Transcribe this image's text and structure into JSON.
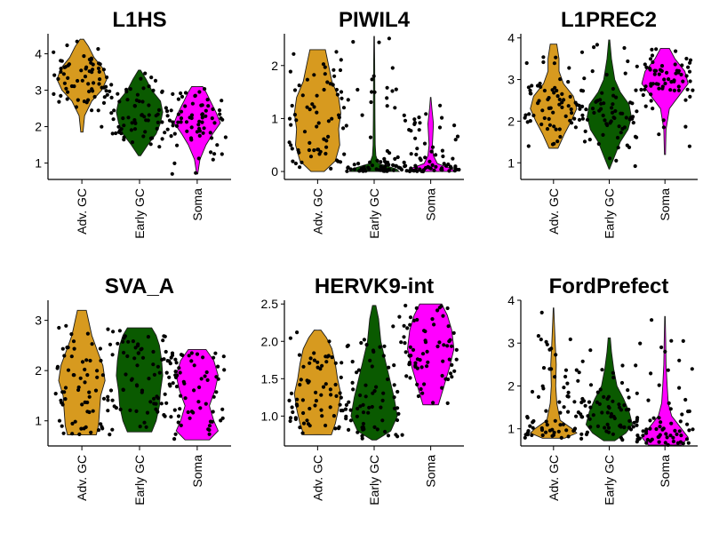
{
  "figure": {
    "groups": [
      "Adv. GC",
      "Early GC",
      "Soma"
    ],
    "group_colors": [
      "#d79a1f",
      "#0a5a00",
      "#ff00ff"
    ]
  },
  "chart_data": [
    {
      "type": "violin",
      "title": "L1HS",
      "categories": [
        "Adv. GC",
        "Early GC",
        "Soma"
      ],
      "ylim": [
        0.55,
        4.55
      ],
      "yticks": [
        1,
        2,
        3,
        4
      ],
      "series": [
        {
          "category": "Adv. GC",
          "min": 1.85,
          "max": 4.4,
          "density": [
            [
              1.85,
              0.02
            ],
            [
              2.3,
              0.05
            ],
            [
              2.7,
              0.18
            ],
            [
              3.0,
              0.36
            ],
            [
              3.3,
              0.45
            ],
            [
              3.6,
              0.38
            ],
            [
              3.9,
              0.22
            ],
            [
              4.2,
              0.12
            ],
            [
              4.4,
              0.03
            ]
          ]
        },
        {
          "category": "Early GC",
          "min": 1.2,
          "max": 3.55,
          "density": [
            [
              1.2,
              0.02
            ],
            [
              1.5,
              0.15
            ],
            [
              1.8,
              0.3
            ],
            [
              2.1,
              0.38
            ],
            [
              2.4,
              0.42
            ],
            [
              2.7,
              0.38
            ],
            [
              3.0,
              0.22
            ],
            [
              3.3,
              0.12
            ],
            [
              3.55,
              0.02
            ]
          ]
        },
        {
          "category": "Soma",
          "min": 0.7,
          "max": 3.1,
          "density": [
            [
              0.7,
              0.01
            ],
            [
              1.1,
              0.05
            ],
            [
              1.5,
              0.16
            ],
            [
              1.8,
              0.28
            ],
            [
              2.1,
              0.42
            ],
            [
              2.4,
              0.34
            ],
            [
              2.7,
              0.24
            ],
            [
              2.95,
              0.16
            ],
            [
              3.1,
              0.1
            ]
          ]
        }
      ]
    },
    {
      "type": "violin",
      "title": "PIWIL4",
      "categories": [
        "Adv. GC",
        "Early GC",
        "Soma"
      ],
      "ylim": [
        -0.15,
        2.6
      ],
      "yticks": [
        0,
        1,
        2
      ],
      "series": [
        {
          "category": "Adv. GC",
          "min": 0.0,
          "max": 2.3,
          "density": [
            [
              0.0,
              0.12
            ],
            [
              0.2,
              0.32
            ],
            [
              0.5,
              0.4
            ],
            [
              0.8,
              0.38
            ],
            [
              1.1,
              0.42
            ],
            [
              1.4,
              0.38
            ],
            [
              1.7,
              0.26
            ],
            [
              2.0,
              0.2
            ],
            [
              2.3,
              0.14
            ]
          ]
        },
        {
          "category": "Early GC",
          "min": 0.0,
          "max": 2.55,
          "density": [
            [
              0.0,
              0.45
            ],
            [
              0.05,
              0.4
            ],
            [
              0.15,
              0.08
            ],
            [
              0.3,
              0.03
            ],
            [
              0.5,
              0.02
            ],
            [
              1.0,
              0.015
            ],
            [
              2.0,
              0.01
            ],
            [
              2.55,
              0.005
            ]
          ]
        },
        {
          "category": "Soma",
          "min": 0.0,
          "max": 1.4,
          "density": [
            [
              0.0,
              0.45
            ],
            [
              0.05,
              0.38
            ],
            [
              0.15,
              0.12
            ],
            [
              0.3,
              0.05
            ],
            [
              0.5,
              0.03
            ],
            [
              0.9,
              0.05
            ],
            [
              1.2,
              0.02
            ],
            [
              1.4,
              0.005
            ]
          ]
        }
      ]
    },
    {
      "type": "violin",
      "title": "L1PREC2",
      "categories": [
        "Adv. GC",
        "Early GC",
        "Soma"
      ],
      "ylim": [
        0.6,
        4.1
      ],
      "yticks": [
        1,
        2,
        3,
        4
      ],
      "series": [
        {
          "category": "Adv. GC",
          "min": 1.35,
          "max": 3.85,
          "density": [
            [
              1.35,
              0.08
            ],
            [
              1.7,
              0.2
            ],
            [
              2.0,
              0.32
            ],
            [
              2.3,
              0.42
            ],
            [
              2.6,
              0.36
            ],
            [
              2.9,
              0.18
            ],
            [
              3.2,
              0.1
            ],
            [
              3.5,
              0.1
            ],
            [
              3.85,
              0.06
            ]
          ]
        },
        {
          "category": "Early GC",
          "min": 0.85,
          "max": 3.95,
          "density": [
            [
              0.85,
              0.005
            ],
            [
              1.1,
              0.08
            ],
            [
              1.5,
              0.2
            ],
            [
              1.8,
              0.34
            ],
            [
              2.1,
              0.4
            ],
            [
              2.4,
              0.36
            ],
            [
              2.7,
              0.2
            ],
            [
              3.0,
              0.1
            ],
            [
              3.5,
              0.04
            ],
            [
              3.95,
              0.01
            ]
          ]
        },
        {
          "category": "Soma",
          "min": 1.2,
          "max": 3.75,
          "density": [
            [
              1.2,
              0.01
            ],
            [
              1.8,
              0.02
            ],
            [
              2.3,
              0.08
            ],
            [
              2.6,
              0.25
            ],
            [
              2.9,
              0.42
            ],
            [
              3.2,
              0.36
            ],
            [
              3.5,
              0.18
            ],
            [
              3.75,
              0.08
            ]
          ]
        }
      ]
    },
    {
      "type": "violin",
      "title": "SVA_A",
      "categories": [
        "Adv. GC",
        "Early GC",
        "Soma"
      ],
      "ylim": [
        0.5,
        3.4
      ],
      "yticks": [
        1,
        2,
        3
      ],
      "series": [
        {
          "category": "Adv. GC",
          "min": 0.72,
          "max": 3.2,
          "density": [
            [
              0.72,
              0.26
            ],
            [
              0.9,
              0.3
            ],
            [
              1.2,
              0.32
            ],
            [
              1.5,
              0.34
            ],
            [
              1.8,
              0.42
            ],
            [
              2.1,
              0.38
            ],
            [
              2.4,
              0.28
            ],
            [
              2.7,
              0.18
            ],
            [
              3.0,
              0.12
            ],
            [
              3.2,
              0.08
            ]
          ]
        },
        {
          "category": "Early GC",
          "min": 0.78,
          "max": 2.85,
          "density": [
            [
              0.78,
              0.22
            ],
            [
              1.0,
              0.3
            ],
            [
              1.3,
              0.36
            ],
            [
              1.6,
              0.38
            ],
            [
              1.9,
              0.42
            ],
            [
              2.2,
              0.4
            ],
            [
              2.5,
              0.36
            ],
            [
              2.7,
              0.3
            ],
            [
              2.85,
              0.22
            ]
          ]
        },
        {
          "category": "Soma",
          "min": 0.62,
          "max": 2.42,
          "density": [
            [
              0.62,
              0.22
            ],
            [
              0.8,
              0.38
            ],
            [
              1.0,
              0.3
            ],
            [
              1.3,
              0.22
            ],
            [
              1.6,
              0.32
            ],
            [
              1.9,
              0.38
            ],
            [
              2.2,
              0.3
            ],
            [
              2.42,
              0.16
            ]
          ]
        }
      ]
    },
    {
      "type": "violin",
      "title": "HERVK9-int",
      "categories": [
        "Adv. GC",
        "Early GC",
        "Soma"
      ],
      "ylim": [
        0.6,
        2.55
      ],
      "yticks": [
        1.0,
        1.5,
        2.0,
        2.5
      ],
      "series": [
        {
          "category": "Adv. GC",
          "min": 0.75,
          "max": 2.15,
          "density": [
            [
              0.75,
              0.25
            ],
            [
              0.9,
              0.32
            ],
            [
              1.1,
              0.38
            ],
            [
              1.3,
              0.42
            ],
            [
              1.5,
              0.36
            ],
            [
              1.7,
              0.32
            ],
            [
              1.9,
              0.26
            ],
            [
              2.05,
              0.16
            ],
            [
              2.15,
              0.06
            ]
          ]
        },
        {
          "category": "Early GC",
          "min": 0.68,
          "max": 2.48,
          "density": [
            [
              0.68,
              0.04
            ],
            [
              0.8,
              0.3
            ],
            [
              1.0,
              0.42
            ],
            [
              1.25,
              0.36
            ],
            [
              1.5,
              0.28
            ],
            [
              1.75,
              0.2
            ],
            [
              2.0,
              0.12
            ],
            [
              2.3,
              0.08
            ],
            [
              2.48,
              0.03
            ]
          ]
        },
        {
          "category": "Soma",
          "min": 1.15,
          "max": 2.5,
          "density": [
            [
              1.15,
              0.14
            ],
            [
              1.4,
              0.24
            ],
            [
              1.65,
              0.34
            ],
            [
              1.9,
              0.42
            ],
            [
              2.15,
              0.38
            ],
            [
              2.35,
              0.3
            ],
            [
              2.5,
              0.2
            ]
          ]
        }
      ]
    },
    {
      "type": "violin",
      "title": "FordPrefect",
      "categories": [
        "Adv. GC",
        "Early GC",
        "Soma"
      ],
      "ylim": [
        0.6,
        4.0
      ],
      "yticks": [
        1,
        2,
        3,
        4
      ],
      "series": [
        {
          "category": "Adv. GC",
          "min": 0.78,
          "max": 3.82,
          "density": [
            [
              0.78,
              0.2
            ],
            [
              0.9,
              0.42
            ],
            [
              1.0,
              0.34
            ],
            [
              1.2,
              0.12
            ],
            [
              1.6,
              0.06
            ],
            [
              2.0,
              0.04
            ],
            [
              2.5,
              0.05
            ],
            [
              3.0,
              0.03
            ],
            [
              3.5,
              0.015
            ],
            [
              3.82,
              0.005
            ]
          ]
        },
        {
          "category": "Early GC",
          "min": 0.72,
          "max": 3.12,
          "density": [
            [
              0.72,
              0.1
            ],
            [
              0.9,
              0.3
            ],
            [
              1.1,
              0.42
            ],
            [
              1.4,
              0.36
            ],
            [
              1.7,
              0.26
            ],
            [
              2.0,
              0.14
            ],
            [
              2.4,
              0.08
            ],
            [
              2.8,
              0.04
            ],
            [
              3.12,
              0.02
            ]
          ]
        },
        {
          "category": "Soma",
          "min": 0.62,
          "max": 3.62,
          "density": [
            [
              0.62,
              0.3
            ],
            [
              0.8,
              0.42
            ],
            [
              1.0,
              0.3
            ],
            [
              1.3,
              0.12
            ],
            [
              1.6,
              0.06
            ],
            [
              2.0,
              0.04
            ],
            [
              2.5,
              0.02
            ],
            [
              3.0,
              0.015
            ],
            [
              3.62,
              0.005
            ]
          ]
        }
      ]
    }
  ]
}
